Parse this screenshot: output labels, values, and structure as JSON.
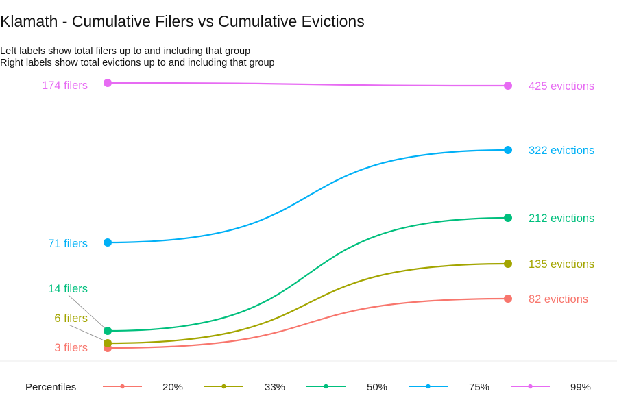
{
  "chart_data": {
    "type": "line",
    "title": "Klamath - Cumulative Filers vs Cumulative Evictions",
    "subtitle": [
      "Left labels show total filers up to and including that group",
      "Right labels show total evictions up to and including that group"
    ],
    "legend": {
      "title": "Percentiles",
      "placement": "bottom"
    },
    "grid": false,
    "series": [
      {
        "name": "20%",
        "color": "#F8766D",
        "left_value": 3,
        "right_value": 82,
        "left_label": "3 filers",
        "right_label": "82 evictions"
      },
      {
        "name": "33%",
        "color": "#A3A500",
        "left_value": 6,
        "right_value": 135,
        "left_label": "6 filers",
        "right_label": "135 evictions"
      },
      {
        "name": "50%",
        "color": "#00BF7D",
        "left_value": 14,
        "right_value": 212,
        "left_label": "14 filers",
        "right_label": "212 evictions"
      },
      {
        "name": "75%",
        "color": "#00B0F6",
        "left_value": 71,
        "right_value": 322,
        "left_label": "71 filers",
        "right_label": "322 evictions"
      },
      {
        "name": "99%",
        "color": "#E76BF3",
        "left_value": 174,
        "right_value": 425,
        "left_label": "174 filers",
        "right_label": "425 evictions"
      }
    ]
  }
}
